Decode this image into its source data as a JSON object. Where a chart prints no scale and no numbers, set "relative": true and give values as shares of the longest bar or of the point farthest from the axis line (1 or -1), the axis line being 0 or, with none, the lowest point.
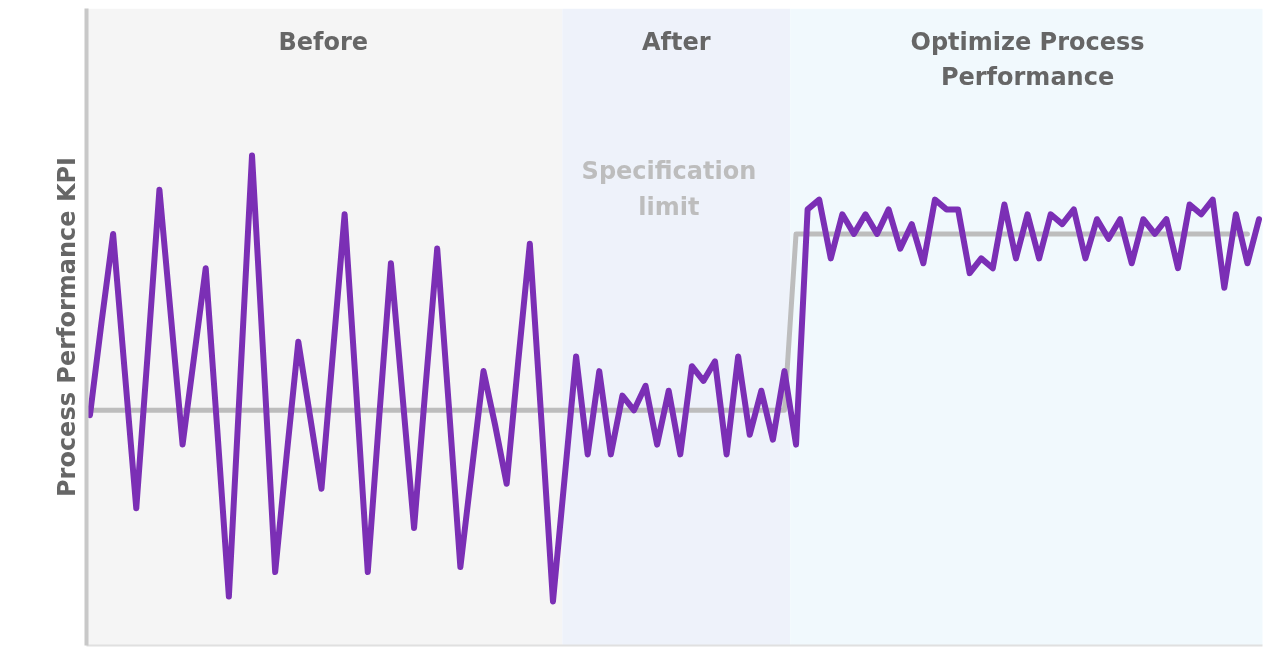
{
  "chart_data": {
    "type": "line",
    "relative": true,
    "ylabel": "Process Performance KPI",
    "marker": "none",
    "line_style": "solid",
    "categories": [
      null,
      null,
      null,
      null,
      null,
      null,
      null,
      null,
      null,
      null,
      null,
      null,
      null,
      null,
      null,
      null,
      null,
      null,
      null,
      null,
      null,
      null,
      null,
      null,
      null,
      null,
      null,
      null,
      null,
      null,
      null,
      null,
      null,
      null,
      null,
      null,
      null,
      null,
      null,
      null,
      null,
      null,
      null,
      null,
      null,
      null,
      null,
      null,
      null,
      null,
      null,
      null,
      null,
      null,
      null,
      null,
      null,
      null,
      null,
      null,
      null,
      null,
      null,
      null,
      null,
      null,
      null,
      null,
      null,
      null,
      null,
      null,
      null,
      null,
      null,
      null,
      null,
      null,
      null,
      null,
      null,
      null,
      null,
      null,
      null,
      null,
      null,
      null,
      null,
      null,
      null,
      null,
      null,
      null,
      null,
      null,
      null,
      null,
      null,
      null,
      null,
      null
    ],
    "series": [
      {
        "name": "Specification limit",
        "color": "#bdbdbd",
        "values": [
          0.48,
          0.48,
          0.48,
          0.48,
          0.48,
          0.48,
          0.48,
          0.48,
          0.48,
          0.48,
          0.48,
          0.48,
          0.48,
          0.48,
          0.48,
          0.48,
          0.48,
          0.48,
          0.48,
          0.48,
          0.48,
          0.48,
          0.48,
          0.48,
          0.48,
          0.48,
          0.48,
          0.48,
          0.48,
          0.48,
          0.48,
          0.48,
          0.48,
          0.48,
          0.48,
          0.48,
          0.48,
          0.48,
          0.48,
          0.48,
          0.48,
          0.48,
          0.48,
          0.48,
          0.48,
          0.48,
          0.48,
          0.48,
          0.48,
          0.48,
          0.48,
          0.48,
          0.48,
          0.48,
          0.48,
          0.48,
          0.48,
          0.48,
          0.48,
          0.48,
          0.48,
          0.84,
          0.84,
          0.84,
          0.84,
          0.84,
          0.84,
          0.84,
          0.84,
          0.84,
          0.84,
          0.84,
          0.84,
          0.84,
          0.84,
          0.84,
          0.84,
          0.84,
          0.84,
          0.84,
          0.84,
          0.84,
          0.84,
          0.84,
          0.84,
          0.84,
          0.84,
          0.84,
          0.84,
          0.84,
          0.84,
          0.84,
          0.84,
          0.84,
          0.84,
          0.84,
          0.84,
          0.84,
          0.84,
          0.84,
          0.84,
          null
        ]
      },
      {
        "color": "#7b2fb5",
        "values": [
          0.47,
          0.66,
          0.84,
          0.56,
          0.28,
          0.6,
          0.93,
          0.67,
          0.41,
          0.59,
          0.77,
          0.44,
          0.1,
          0.55,
          1.0,
          0.58,
          0.15,
          0.39,
          0.62,
          0.47,
          0.32,
          0.6,
          0.88,
          0.52,
          0.15,
          0.47,
          0.78,
          0.51,
          0.24,
          0.53,
          0.81,
          0.49,
          0.16,
          0.36,
          0.56,
          0.45,
          0.33,
          0.58,
          0.82,
          0.46,
          0.09,
          0.34,
          0.59,
          0.39,
          0.56,
          0.39,
          0.51,
          0.48,
          0.53,
          0.41,
          0.52,
          0.39,
          0.57,
          0.54,
          0.58,
          0.39,
          0.59,
          0.43,
          0.52,
          0.42,
          0.56,
          0.41,
          0.89,
          0.91,
          0.79,
          0.88,
          0.84,
          0.88,
          0.84,
          0.89,
          0.81,
          0.86,
          0.78,
          0.91,
          0.89,
          0.89,
          0.76,
          0.79,
          0.77,
          0.9,
          0.79,
          0.88,
          0.79,
          0.88,
          0.86,
          0.89,
          0.79,
          0.87,
          0.83,
          0.87,
          0.78,
          0.87,
          0.84,
          0.87,
          0.77,
          0.9,
          0.88,
          0.91,
          0.73,
          0.88,
          0.78,
          0.87
        ]
      }
    ],
    "annotations": [
      "Before",
      "After",
      "Optimize Process Performance"
    ]
  }
}
